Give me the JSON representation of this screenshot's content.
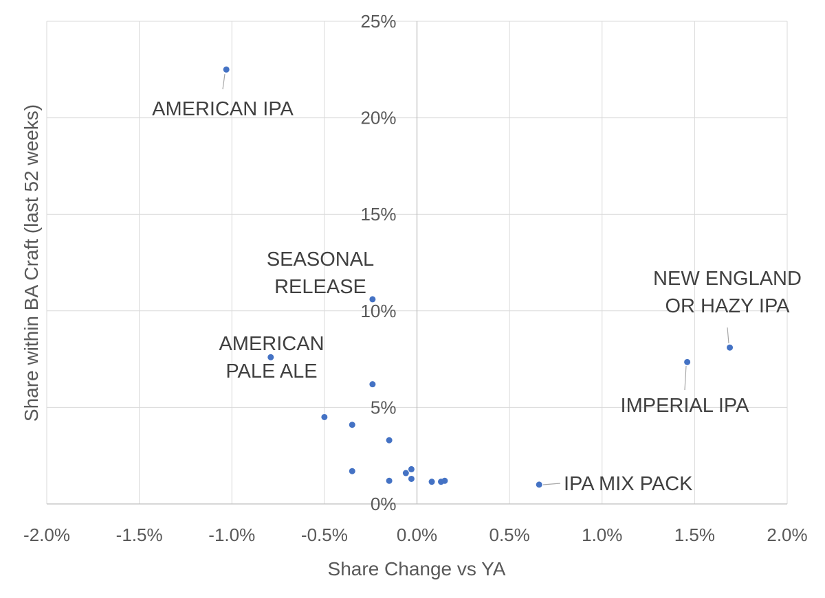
{
  "chart_data": {
    "type": "scatter",
    "title": "",
    "xlabel": "Share Change vs YA",
    "ylabel": "Share within BA Craft (last 52 weeks)",
    "xlim": [
      -0.02,
      0.02
    ],
    "ylim": [
      0,
      0.25
    ],
    "x_ticks": [
      -0.02,
      -0.015,
      -0.01,
      -0.005,
      0.0,
      0.005,
      0.01,
      0.015,
      0.02
    ],
    "x_tick_labels": [
      "-2.0%",
      "-1.5%",
      "-1.0%",
      "-0.5%",
      "0.0%",
      "0.5%",
      "1.0%",
      "1.5%",
      "2.0%"
    ],
    "y_ticks": [
      0,
      0.05,
      0.1,
      0.15,
      0.2,
      0.25
    ],
    "y_tick_labels": [
      "0%",
      "5%",
      "10%",
      "15%",
      "20%",
      "25%"
    ],
    "grid": true,
    "legend": "none",
    "marker_color": "#4472c4",
    "points": [
      {
        "x": -0.0103,
        "y": 0.225,
        "label": "AMERICAN IPA"
      },
      {
        "x": -0.0024,
        "y": 0.106,
        "label": "SEASONAL RELEASE"
      },
      {
        "x": -0.0079,
        "y": 0.076,
        "label": "AMERICAN PALE ALE"
      },
      {
        "x": 0.0169,
        "y": 0.081,
        "label": "NEW ENGLAND OR HAZY IPA"
      },
      {
        "x": 0.0146,
        "y": 0.0735,
        "label": "IMPERIAL IPA"
      },
      {
        "x": 0.0066,
        "y": 0.01,
        "label": "IPA MIX PACK"
      },
      {
        "x": -0.0024,
        "y": 0.062,
        "label": ""
      },
      {
        "x": -0.005,
        "y": 0.045,
        "label": ""
      },
      {
        "x": -0.0035,
        "y": 0.041,
        "label": ""
      },
      {
        "x": -0.0015,
        "y": 0.033,
        "label": ""
      },
      {
        "x": -0.0035,
        "y": 0.017,
        "label": ""
      },
      {
        "x": -0.0015,
        "y": 0.012,
        "label": ""
      },
      {
        "x": -0.0006,
        "y": 0.016,
        "label": ""
      },
      {
        "x": -0.0003,
        "y": 0.018,
        "label": ""
      },
      {
        "x": -0.0003,
        "y": 0.013,
        "label": ""
      },
      {
        "x": 0.0008,
        "y": 0.0115,
        "label": ""
      },
      {
        "x": 0.0013,
        "y": 0.0115,
        "label": ""
      },
      {
        "x": 0.0015,
        "y": 0.012,
        "label": ""
      }
    ],
    "annotations": [
      {
        "lines": [
          "AMERICAN IPA"
        ],
        "point": 0
      },
      {
        "lines": [
          "SEASONAL",
          "RELEASE"
        ],
        "point": 1
      },
      {
        "lines": [
          "AMERICAN",
          "PALE ALE"
        ],
        "point": 2
      },
      {
        "lines": [
          "NEW ENGLAND",
          "OR HAZY IPA"
        ],
        "point": 3
      },
      {
        "lines": [
          "IMPERIAL IPA"
        ],
        "point": 4
      },
      {
        "lines": [
          "IPA MIX PACK"
        ],
        "point": 5
      }
    ]
  }
}
